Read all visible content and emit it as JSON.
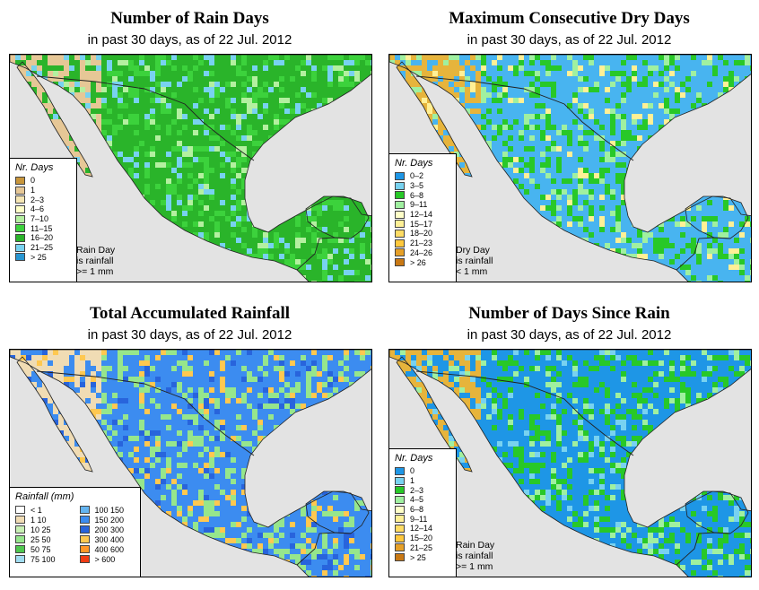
{
  "panels": [
    {
      "id": "rain_days",
      "title": "Number of Rain Days",
      "subtitle": "in past 30 days, as of  22 Jul. 2012",
      "legend_title": "Nr. Days",
      "legend": [
        {
          "label": "0",
          "color": "#c8963c"
        },
        {
          "label": "1",
          "color": "#e6c796"
        },
        {
          "label": "2–3",
          "color": "#f6e6b4"
        },
        {
          "label": "4–6",
          "color": "#ffffc8"
        },
        {
          "label": "7–10",
          "color": "#b4f0a0"
        },
        {
          "label": "11–15",
          "color": "#3cd23c"
        },
        {
          "label": "16–20",
          "color": "#2ab42a"
        },
        {
          "label": "21–25",
          "color": "#78d2f0"
        },
        {
          "label": "> 25",
          "color": "#2896d2"
        }
      ],
      "note": [
        "Rain Day",
        "is rainfall",
        ">= 1 mm"
      ],
      "palette": {
        "land": "#2ab42a",
        "accent": "#3cd23c",
        "west": "#e6c796",
        "highlight": "#78d2f0",
        "spot": "#b4f0a0"
      }
    },
    {
      "id": "dry_days",
      "title": "Maximum Consecutive Dry Days",
      "subtitle": "in past 30 days, as of  22 Jul. 2012",
      "legend_title": "Nr. Days",
      "legend": [
        {
          "label": "0–2",
          "color": "#1e96e6"
        },
        {
          "label": "3–5",
          "color": "#78d2f0"
        },
        {
          "label": "6–8",
          "color": "#28c828"
        },
        {
          "label": "9–11",
          "color": "#a0f0a0"
        },
        {
          "label": "12–14",
          "color": "#ffffc8"
        },
        {
          "label": "15–17",
          "color": "#fff096"
        },
        {
          "label": "18–20",
          "color": "#ffdc64"
        },
        {
          "label": "21–23",
          "color": "#ffc83c"
        },
        {
          "label": "24–26",
          "color": "#e6a028"
        },
        {
          "label": "> 26",
          "color": "#c87814"
        }
      ],
      "note": [
        "Dry Day",
        "is rainfall",
        "< 1 mm"
      ],
      "palette": {
        "land": "#48b4f0",
        "accent": "#28c828",
        "west": "#e6b43c",
        "highlight": "#a0f0a0",
        "spot": "#fff096"
      }
    },
    {
      "id": "total_rain",
      "title": "Total Accumulated Rainfall",
      "subtitle": "in past 30 days, as of  22 Jul. 2012",
      "legend_title": "Rainfall (mm)",
      "legend_left": [
        {
          "label": "< 1",
          "color": "#ffffff"
        },
        {
          "label": "1   10",
          "color": "#f0dcb4"
        },
        {
          "label": "10   25",
          "color": "#c8f0b4"
        },
        {
          "label": "25   50",
          "color": "#96e68c"
        },
        {
          "label": "50   75",
          "color": "#50c850"
        },
        {
          "label": "75   100",
          "color": "#a0dcf0"
        }
      ],
      "legend_right": [
        {
          "label": "100   150",
          "color": "#64b4f0"
        },
        {
          "label": "150   200",
          "color": "#3c8cf0"
        },
        {
          "label": "200   300",
          "color": "#2864dc"
        },
        {
          "label": "300   400",
          "color": "#ffc850"
        },
        {
          "label": "400   600",
          "color": "#ff9628"
        },
        {
          "label": "> 600",
          "color": "#f03c14"
        }
      ],
      "palette": {
        "land": "#3c8cf0",
        "accent": "#96e68c",
        "west": "#f0dcb4",
        "highlight": "#ffc850",
        "spot": "#2864dc"
      }
    },
    {
      "id": "days_since",
      "title": "Number of Days Since Rain",
      "subtitle": "in past 30 days, as of  22 Jul. 2012",
      "legend_title": "Nr. Days",
      "legend": [
        {
          "label": "0",
          "color": "#1e96e6"
        },
        {
          "label": "1",
          "color": "#78d2f0"
        },
        {
          "label": "2–3",
          "color": "#28c828"
        },
        {
          "label": "4–5",
          "color": "#a0f0a0"
        },
        {
          "label": "6–8",
          "color": "#ffffc8"
        },
        {
          "label": "9–11",
          "color": "#fff096"
        },
        {
          "label": "12–14",
          "color": "#ffdc64"
        },
        {
          "label": "15–20",
          "color": "#ffc83c"
        },
        {
          "label": "21–25",
          "color": "#e6a028"
        },
        {
          "label": "> 25",
          "color": "#c87814"
        }
      ],
      "note": [
        "Rain Day",
        "is rainfall",
        ">= 1 mm"
      ],
      "palette": {
        "land": "#1e96e6",
        "accent": "#28c828",
        "west": "#e6b43c",
        "highlight": "#a0f0a0",
        "spot": "#78d2f0"
      }
    }
  ]
}
